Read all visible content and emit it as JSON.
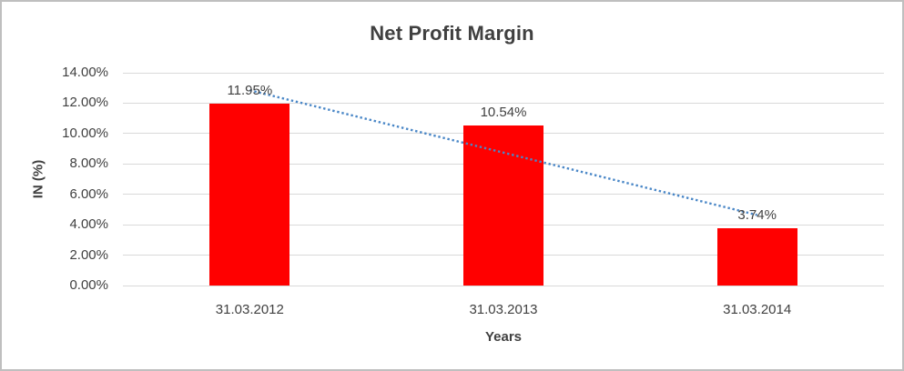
{
  "chart_data": {
    "type": "bar",
    "title": "Net Profit Margin",
    "xlabel": "Years",
    "ylabel": "IN (%)",
    "categories": [
      "31.03.2012",
      "31.03.2013",
      "31.03.2014"
    ],
    "values": [
      11.95,
      10.54,
      3.74
    ],
    "data_labels": [
      "11.95%",
      "10.54%",
      "3.74%"
    ],
    "ylim": [
      0,
      14
    ],
    "ytick_step": 2,
    "ytick_labels": [
      "0.00%",
      "2.00%",
      "4.00%",
      "6.00%",
      "8.00%",
      "10.00%",
      "12.00%",
      "14.00%"
    ],
    "grid": true,
    "legend_position": "none",
    "bar_color": "#FF0000",
    "gridline_color": "#D9D9D9",
    "text_color": "#404040",
    "frame_border_color": "#BFBFBF",
    "trendline": {
      "type": "linear",
      "style": "dotted",
      "color": "#4A87C7",
      "start_value": 12.85,
      "end_value": 4.64
    }
  }
}
